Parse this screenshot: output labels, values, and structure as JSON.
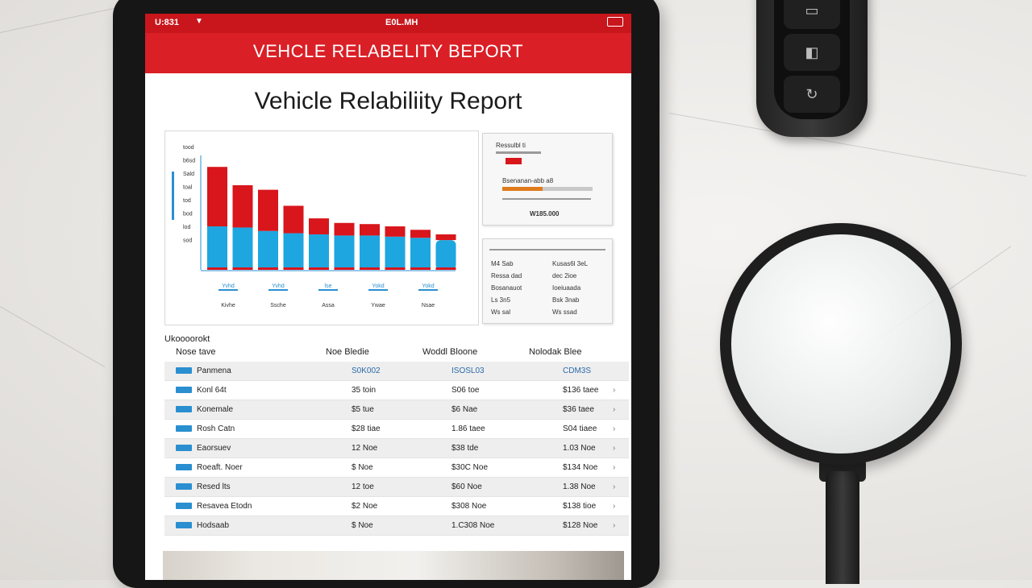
{
  "status_bar": {
    "left": "U:831",
    "center": "E0L.MH"
  },
  "app_bar": {
    "title": "VEHCLE RELABELITY BEPORT"
  },
  "report": {
    "title": "Vehicle Relabiliity Report"
  },
  "chart_data": {
    "type": "bar",
    "stacked": true,
    "categories": [
      "",
      "",
      "",
      "",
      "",
      "",
      "",
      "",
      "",
      ""
    ],
    "series": [
      {
        "values": [
          0.38,
          0.37,
          0.34,
          0.32,
          0.31,
          0.3,
          0.3,
          0.29,
          0.28,
          0.26
        ]
      },
      {
        "values": [
          0.52,
          0.37,
          0.36,
          0.24,
          0.14,
          0.11,
          0.1,
          0.09,
          0.07,
          0.05
        ]
      }
    ],
    "ylim": [
      0,
      1
    ],
    "colors": [
      "#1ea6e0",
      "#d8161c"
    ],
    "tick_labels": [
      "tood",
      "b6sd",
      "Sald",
      "toal",
      "tod",
      "bod",
      "lod",
      "sod"
    ],
    "x_labels": [
      {
        "top": "Yvhd",
        "bottom": "Kivhe"
      },
      {
        "top": "Yvhd",
        "bottom": "Ssche"
      },
      {
        "top": "lse",
        "bottom": "Assa"
      },
      {
        "top": "Yokd",
        "bottom": "Ywae"
      },
      {
        "top": "Yokd",
        "bottom": "Nsae"
      }
    ]
  },
  "side_cards": {
    "card1": {
      "line1": "Ressulbl ti",
      "line2": "Bsenanan-abb a8",
      "footer": "W185.000"
    },
    "card2": {
      "rows": [
        [
          "M4 Sab",
          "Kusas6l 3eL"
        ],
        [
          "Ressa dad",
          "dec 2ioe"
        ],
        [
          "Bosanauot",
          "Ioeiuaada"
        ],
        [
          "Ls 3n5",
          "Bsk 3nab"
        ],
        [
          "Ws sal",
          "Ws ssad"
        ]
      ]
    }
  },
  "table": {
    "caption": "Ukoooorokt",
    "headers": [
      "Nose tave",
      "Noe Bledie",
      "Woddl Bloone",
      "Nolodak Blee"
    ],
    "rows": [
      {
        "name": "Panmena",
        "c1": "S0K002",
        "c2": "ISOSL03",
        "c3": "CDM3S",
        "chev": ""
      },
      {
        "name": "Konl 64t",
        "c1": "35  toin",
        "c2": "S06  toe",
        "c3": "$136  taee",
        "chev": "›"
      },
      {
        "name": "Konemale",
        "c1": "$5  tue",
        "c2": "$6  Nae",
        "c3": "$36  taee",
        "chev": "›"
      },
      {
        "name": "Rosh Catn",
        "c1": "$28  tiae",
        "c2": "1.86  taee",
        "c3": "S04  tiaee",
        "chev": "›"
      },
      {
        "name": "Eaorsuev",
        "c1": "12  Noe",
        "c2": "$38  tde",
        "c3": "1.03  Noe",
        "chev": "›"
      },
      {
        "name": "Roeaft. Noer",
        "c1": "$  Noe",
        "c2": "$30C  Noe",
        "c3": "$134  Noe",
        "chev": "›"
      },
      {
        "name": "Resed lts",
        "c1": "12  toe",
        "c2": "$60  Noe",
        "c3": "1.38  Noe",
        "chev": "›"
      },
      {
        "name": "Resavea Etodn",
        "c1": "$2  Noe",
        "c2": "$308  Noe",
        "c3": "$138  tioe",
        "chev": "›"
      },
      {
        "name": "Hodsaab",
        "c1": "$  Noe",
        "c2": "1.C308  Noe",
        "c3": "$128  Noe",
        "chev": "›"
      }
    ]
  },
  "key_fob": {
    "buttons": [
      "▭",
      "◧",
      "↻"
    ]
  }
}
